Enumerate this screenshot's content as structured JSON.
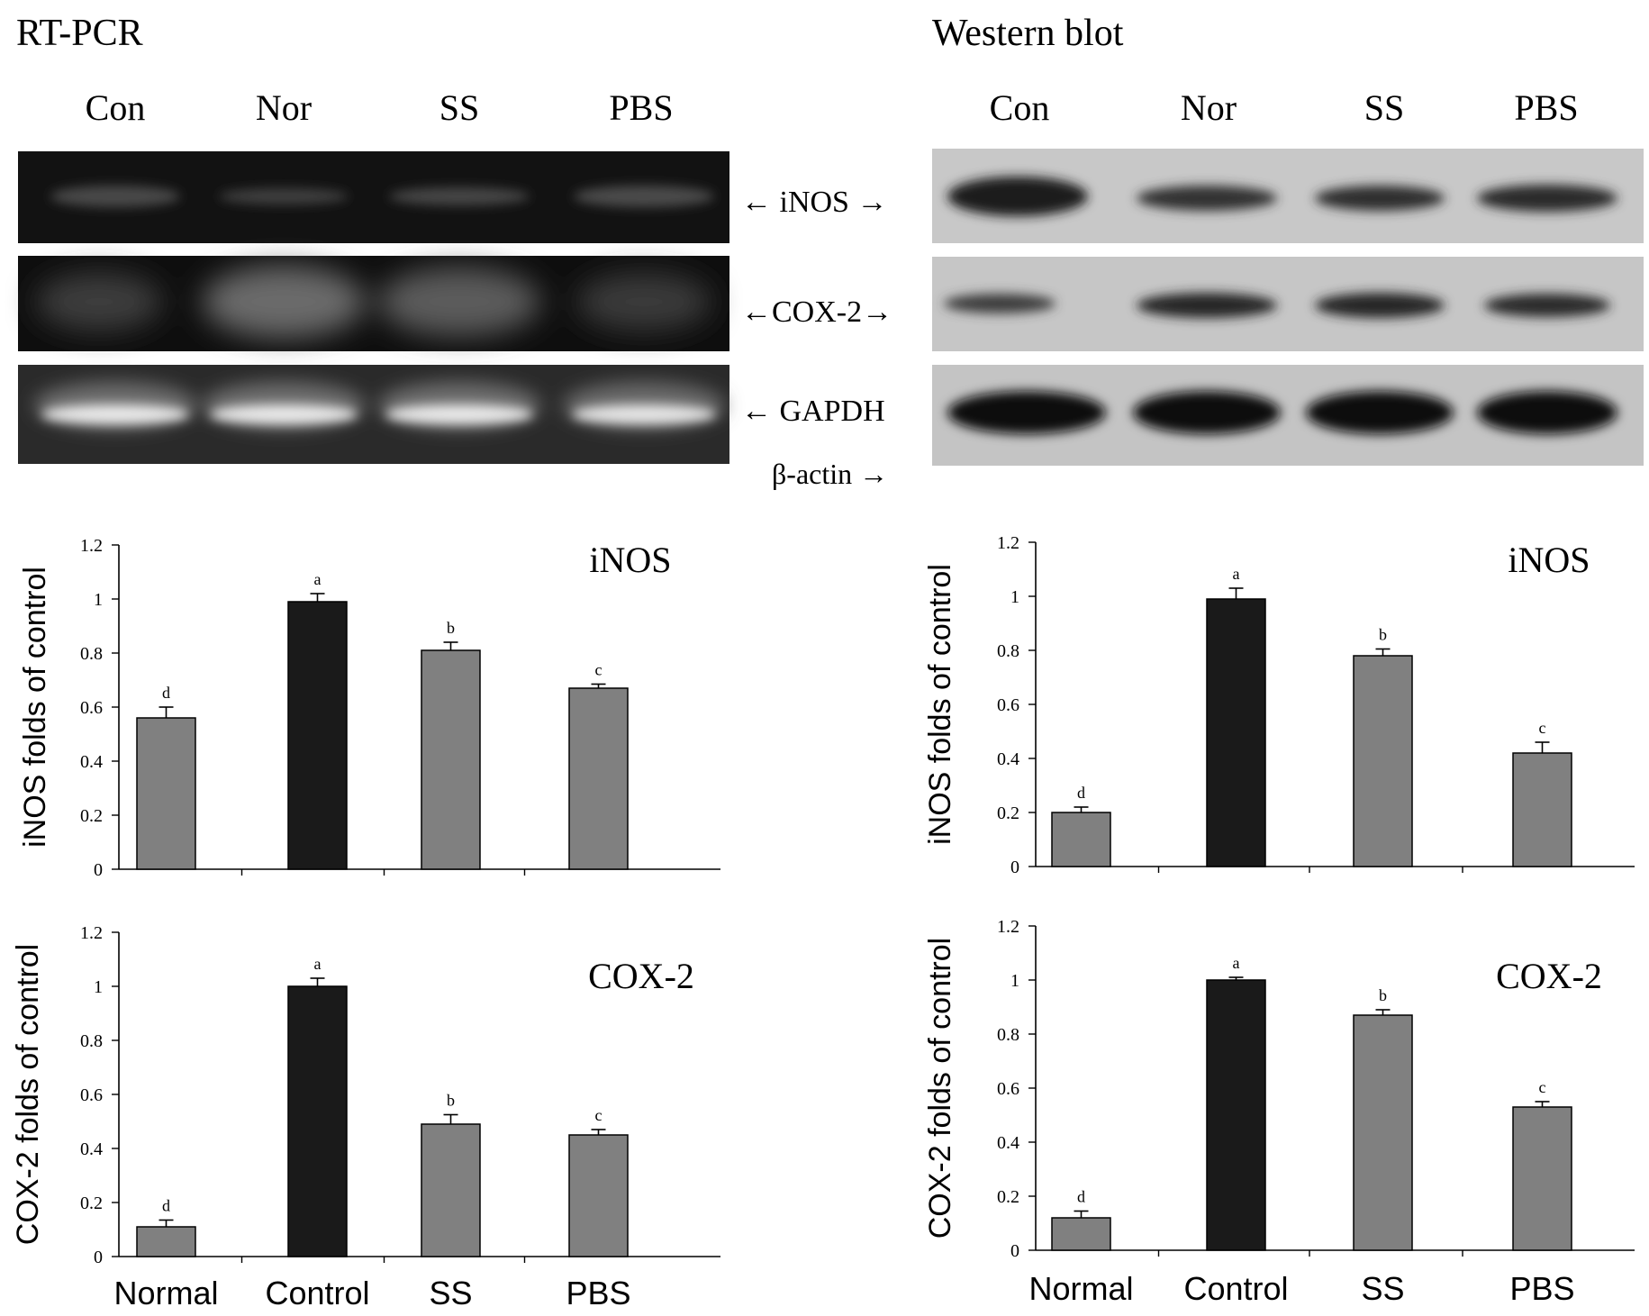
{
  "panels": {
    "left_title": "RT-PCR",
    "right_title": "Western blot"
  },
  "gel_lanes_left": [
    "Con",
    "Nor",
    "SS",
    "PBS"
  ],
  "gel_lanes_right": [
    "Con",
    "Nor",
    "SS",
    "PBS"
  ],
  "gel_labels": {
    "inos": "← iNOS →",
    "cox2": "←COX-2→",
    "gapdh": "← GAPDH",
    "bactin": "β-actin →"
  },
  "colors": {
    "gray_bar": "#808080",
    "control_bar": "#1a1a1a",
    "axis": "#000000"
  },
  "chart_data": [
    {
      "type": "bar",
      "id": "rt-inos",
      "title": "iNOS",
      "ylabel": "iNOS folds of control",
      "xlabel": "",
      "categories": [
        "Normal",
        "Control",
        "SS",
        "PBS"
      ],
      "values": [
        0.56,
        0.99,
        0.81,
        0.67
      ],
      "errors": [
        0.04,
        0.03,
        0.03,
        0.015
      ],
      "letters": [
        "d",
        "a",
        "b",
        "c"
      ],
      "ylim": [
        0,
        1.2
      ],
      "yticks": [
        "0",
        "0.2",
        "0.4",
        "0.6",
        "0.8",
        "1",
        "1.2"
      ],
      "show_categories": false
    },
    {
      "type": "bar",
      "id": "rt-cox2",
      "title": "COX-2",
      "ylabel": "COX-2 folds of control",
      "xlabel": "",
      "categories": [
        "Normal",
        "Control",
        "SS",
        "PBS"
      ],
      "values": [
        0.11,
        1.0,
        0.49,
        0.45
      ],
      "errors": [
        0.025,
        0.03,
        0.035,
        0.02
      ],
      "letters": [
        "d",
        "a",
        "b",
        "c"
      ],
      "ylim": [
        0,
        1.2
      ],
      "yticks": [
        "0",
        "0.2",
        "0.4",
        "0.6",
        "0.8",
        "1",
        "1.2"
      ],
      "show_categories": true
    },
    {
      "type": "bar",
      "id": "wb-inos",
      "title": "iNOS",
      "ylabel": "iNOS folds of control",
      "xlabel": "",
      "categories": [
        "Normal",
        "Control",
        "SS",
        "PBS"
      ],
      "values": [
        0.2,
        0.99,
        0.78,
        0.42
      ],
      "errors": [
        0.02,
        0.04,
        0.025,
        0.04
      ],
      "letters": [
        "d",
        "a",
        "b",
        "c"
      ],
      "ylim": [
        0,
        1.2
      ],
      "yticks": [
        "0",
        "0.2",
        "0.4",
        "0.6",
        "0.8",
        "1",
        "1.2"
      ],
      "show_categories": false
    },
    {
      "type": "bar",
      "id": "wb-cox2",
      "title": "COX-2",
      "ylabel": "COX-2 folds of control",
      "xlabel": "",
      "categories": [
        "Normal",
        "Control",
        "SS",
        "PBS"
      ],
      "values": [
        0.12,
        1.0,
        0.87,
        0.53
      ],
      "errors": [
        0.025,
        0.01,
        0.02,
        0.02
      ],
      "letters": [
        "d",
        "a",
        "b",
        "c"
      ],
      "ylim": [
        0,
        1.2
      ],
      "yticks": [
        "0",
        "0.2",
        "0.4",
        "0.6",
        "0.8",
        "1",
        "1.2"
      ],
      "show_categories": true
    }
  ]
}
